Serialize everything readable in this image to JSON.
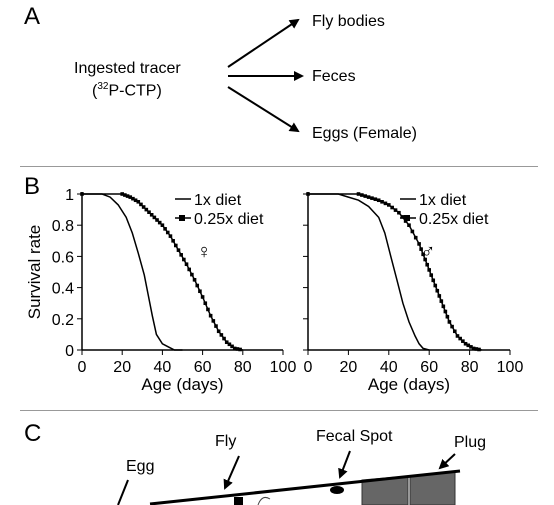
{
  "panel_a": {
    "letter": "A",
    "source_label": "Ingested tracer",
    "source_sublabel_sup": "32",
    "source_sublabel_main": "P-CTP",
    "destinations": [
      "Fly bodies",
      "Feces",
      "Eggs (Female)"
    ]
  },
  "panel_b": {
    "letter": "B"
  },
  "panel_c": {
    "letter": "C",
    "labels": {
      "egg": "Egg",
      "fly": "Fly",
      "fecal_spot": "Fecal Spot",
      "plug": "Plug"
    }
  },
  "colors": {
    "line": "#000000",
    "divider": "#999999",
    "plug_fill": "#666666"
  },
  "chart_data": [
    {
      "type": "line",
      "title": "",
      "sex_symbol": "♀",
      "xlabel": "Age (days)",
      "ylabel": "Survival rate",
      "xlim": [
        0,
        100
      ],
      "ylim": [
        0,
        1
      ],
      "xticks": [
        0,
        20,
        40,
        60,
        80,
        100
      ],
      "yticks": [
        0,
        0.2,
        0.4,
        0.6,
        0.8,
        1
      ],
      "ytick_labels": [
        "0",
        "0.2",
        "0.4",
        "0.6",
        "0.8",
        "1"
      ],
      "legend_position": "top-right",
      "series": [
        {
          "name": "1x diet",
          "marker": "none",
          "x": [
            0,
            10,
            14,
            18,
            22,
            25,
            28,
            31,
            33,
            35,
            37,
            40,
            43,
            46,
            50
          ],
          "y": [
            1,
            1,
            0.98,
            0.93,
            0.85,
            0.75,
            0.62,
            0.48,
            0.35,
            0.22,
            0.1,
            0.04,
            0.02,
            0,
            0
          ]
        },
        {
          "name": "0.25x diet",
          "marker": "square",
          "x": [
            0,
            20,
            24,
            28,
            32,
            36,
            40,
            44,
            48,
            52,
            56,
            60,
            64,
            68,
            72,
            76,
            80
          ],
          "y": [
            1,
            1,
            0.98,
            0.95,
            0.9,
            0.85,
            0.8,
            0.73,
            0.64,
            0.55,
            0.45,
            0.34,
            0.22,
            0.12,
            0.05,
            0.01,
            0
          ]
        }
      ]
    },
    {
      "type": "line",
      "title": "",
      "sex_symbol": "♂",
      "xlabel": "Age (days)",
      "ylabel": "",
      "xlim": [
        0,
        100
      ],
      "ylim": [
        0,
        1
      ],
      "xticks": [
        0,
        20,
        40,
        60,
        80,
        100
      ],
      "yticks": [
        0,
        0.2,
        0.4,
        0.6,
        0.8,
        1
      ],
      "legend_position": "top-right",
      "series": [
        {
          "name": "1x diet",
          "marker": "none",
          "x": [
            0,
            15,
            20,
            25,
            30,
            35,
            38,
            41,
            44,
            47,
            50,
            53,
            55,
            57,
            60
          ],
          "y": [
            1,
            1,
            0.98,
            0.96,
            0.92,
            0.85,
            0.75,
            0.6,
            0.45,
            0.3,
            0.18,
            0.09,
            0.04,
            0.01,
            0
          ]
        },
        {
          "name": "0.25x diet",
          "marker": "square",
          "x": [
            0,
            25,
            30,
            35,
            40,
            45,
            50,
            55,
            58,
            61,
            64,
            67,
            70,
            74,
            78,
            82,
            86
          ],
          "y": [
            1,
            1,
            0.98,
            0.96,
            0.93,
            0.88,
            0.8,
            0.68,
            0.58,
            0.48,
            0.38,
            0.28,
            0.18,
            0.09,
            0.04,
            0.01,
            0
          ]
        }
      ]
    }
  ]
}
